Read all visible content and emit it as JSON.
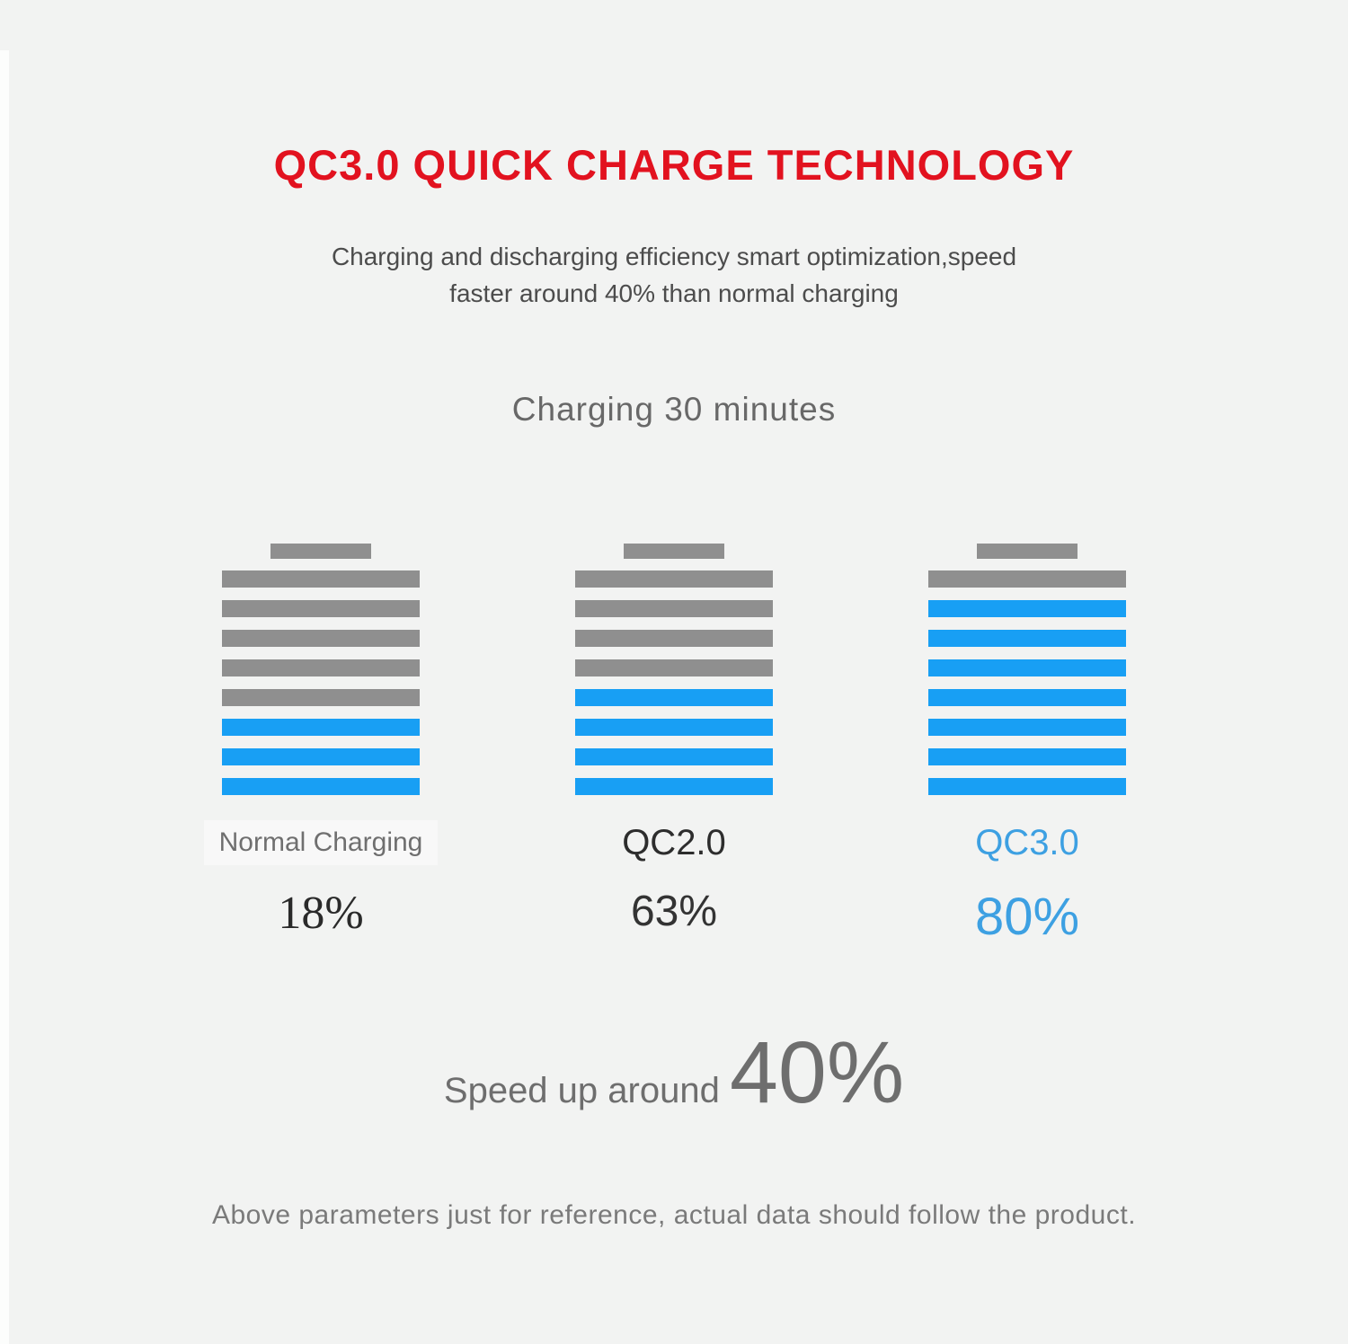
{
  "title": {
    "text": "QC3.0 QUICK CHARGE TECHNOLOGY",
    "color": "#e2121f"
  },
  "subtitle": {
    "line1": "Charging and discharging efficiency smart optimization,speed",
    "line2": "faster around 40% than normal charging"
  },
  "chart_data": {
    "type": "bar",
    "title": "Charging 30 minutes",
    "categories": [
      "Normal Charging",
      "QC2.0",
      "QC3.0"
    ],
    "values": [
      18,
      63,
      80
    ],
    "unit": "% charged after 30 minutes",
    "segments_per_battery": 8,
    "colors": {
      "fill": "#189ff4",
      "empty": "#8f8f8f"
    },
    "series": [
      {
        "name": "Normal Charging",
        "value": 18,
        "value_label": "18%",
        "filled_segments": 3,
        "segments": [
          "empty",
          "empty",
          "empty",
          "empty",
          "empty",
          "fill",
          "fill",
          "fill"
        ],
        "label_color": "#6f6f6f",
        "value_color": "#2a2a2a",
        "label_background": "#f8f8f8"
      },
      {
        "name": "QC2.0",
        "value": 63,
        "value_label": "63%",
        "filled_segments": 4,
        "segments": [
          "empty",
          "empty",
          "empty",
          "empty",
          "fill",
          "fill",
          "fill",
          "fill"
        ],
        "label_color": "#2d2d2d",
        "value_color": "#333333",
        "label_background": null
      },
      {
        "name": "QC3.0",
        "value": 80,
        "value_label": "80%",
        "filled_segments": 7,
        "segments": [
          "empty",
          "fill",
          "fill",
          "fill",
          "fill",
          "fill",
          "fill",
          "fill"
        ],
        "label_color": "#3da0e2",
        "value_color": "#3da0e2",
        "label_background": null
      }
    ]
  },
  "speedup": {
    "prefix": "Speed up around",
    "value": "40%"
  },
  "footer": "Above parameters just for reference, actual data should follow the product."
}
